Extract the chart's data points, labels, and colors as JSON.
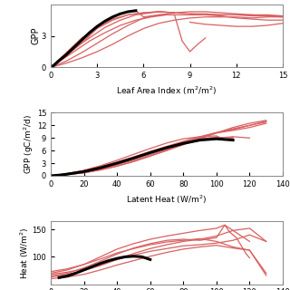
{
  "panel1": {
    "xlabel": "Leaf Area Index (m$^2$/m$^2$)",
    "ylabel": "GPP",
    "xlim": [
      0,
      15
    ],
    "ylim": [
      0,
      6
    ],
    "xticks": [
      0,
      3,
      6,
      9,
      12,
      15
    ],
    "yticks": [
      0,
      3
    ],
    "red_lines": [
      [
        [
          0,
          0.3,
          0.8,
          1.5,
          2.5,
          3.5,
          4.5,
          5.5,
          6.5,
          7,
          7.5,
          8,
          8.5,
          9,
          9.5,
          10,
          11,
          12,
          13,
          14,
          15
        ],
        [
          0,
          0.3,
          0.8,
          1.5,
          2.5,
          3.3,
          4.0,
          4.5,
          4.8,
          4.9,
          5.0,
          5.0,
          5.0,
          5.0,
          5.0,
          5.0,
          5.0,
          5.0,
          4.9,
          4.9,
          4.8
        ]
      ],
      [
        [
          0,
          0.3,
          0.8,
          1.5,
          2.5,
          3.5,
          4.5,
          5.5,
          6.5,
          7,
          8,
          9,
          10,
          11,
          12,
          13,
          14,
          15
        ],
        [
          0,
          0.4,
          1.0,
          1.8,
          2.8,
          3.8,
          4.5,
          5.0,
          5.2,
          5.3,
          5.2,
          5.1,
          5.1,
          5.0,
          5.0,
          5.0,
          4.9,
          4.9
        ]
      ],
      [
        [
          0,
          0.5,
          1,
          1.5,
          2,
          2.5,
          3,
          4,
          5,
          6,
          7,
          8
        ],
        [
          0,
          0.5,
          1.1,
          1.7,
          2.3,
          3.0,
          3.7,
          4.5,
          5.0,
          5.2,
          5.3,
          5.2
        ]
      ],
      [
        [
          0,
          0.5,
          1,
          1.5,
          2,
          3,
          4,
          5,
          6,
          7,
          8
        ],
        [
          0,
          0.7,
          1.4,
          2.1,
          2.8,
          3.8,
          4.6,
          5.0,
          5.2,
          5.3,
          5.2
        ]
      ],
      [
        [
          0,
          0.5,
          1,
          2,
          3,
          4,
          5,
          5.5,
          6,
          7,
          8,
          8.5,
          9,
          9.5,
          10
        ],
        [
          0,
          0.6,
          1.3,
          2.5,
          3.8,
          4.8,
          5.3,
          5.4,
          4.8,
          5.0,
          5.0,
          2.5,
          1.5,
          2.2,
          2.8
        ]
      ],
      [
        [
          0,
          1,
          2,
          3,
          4,
          5,
          6,
          7,
          8,
          9,
          10,
          11,
          12,
          13,
          14,
          15
        ],
        [
          0,
          0.6,
          1.4,
          2.3,
          3.2,
          4.0,
          4.7,
          5.0,
          5.2,
          5.3,
          5.3,
          5.2,
          5.1,
          5.0,
          5.0,
          4.9
        ]
      ],
      [
        [
          0,
          1,
          2,
          3,
          4,
          5,
          6,
          7,
          8,
          9,
          10,
          11,
          12,
          13,
          14,
          15
        ],
        [
          0,
          0.4,
          0.9,
          1.5,
          2.2,
          3.0,
          3.7,
          4.2,
          4.5,
          4.7,
          4.8,
          4.8,
          4.8,
          4.7,
          4.8,
          4.8
        ]
      ],
      [
        [
          9,
          10,
          11,
          12,
          13,
          14,
          15
        ],
        [
          5.1,
          5.0,
          4.9,
          4.7,
          4.6,
          4.5,
          4.5
        ]
      ],
      [
        [
          9,
          10,
          11,
          12,
          13,
          14,
          15
        ],
        [
          4.3,
          4.1,
          4.0,
          3.9,
          3.9,
          4.0,
          4.2
        ]
      ]
    ],
    "black_line": [
      [
        0,
        0.2,
        0.5,
        1.0,
        1.5,
        2.0,
        2.5,
        3.0,
        3.5,
        4.0,
        4.5,
        5.0,
        5.5
      ],
      [
        0,
        0.2,
        0.6,
        1.2,
        1.9,
        2.6,
        3.3,
        3.9,
        4.4,
        4.8,
        5.1,
        5.3,
        5.4
      ]
    ]
  },
  "panel2": {
    "xlabel": "Latent Heat (W/m$^2$)",
    "ylabel": "GPP (gC/m$^2$/d)",
    "xlim": [
      0,
      140
    ],
    "ylim": [
      0,
      15
    ],
    "xticks": [
      0,
      20,
      40,
      60,
      80,
      100,
      120,
      140
    ],
    "yticks": [
      0,
      3,
      6,
      9,
      12,
      15
    ],
    "red_lines": [
      [
        [
          0,
          5,
          10,
          20,
          30,
          40,
          50,
          60,
          70,
          80,
          90,
          100,
          110,
          120,
          130
        ],
        [
          0,
          0.2,
          0.5,
          1.2,
          2.2,
          3.3,
          4.5,
          5.8,
          7.0,
          8.2,
          9.3,
          10.3,
          11.0,
          12.0,
          13.0
        ]
      ],
      [
        [
          0,
          5,
          10,
          20,
          30,
          40,
          50,
          60,
          70,
          80,
          90,
          100,
          110,
          120,
          130
        ],
        [
          0,
          0.2,
          0.5,
          1.1,
          2.0,
          3.1,
          4.3,
          5.6,
          6.9,
          8.1,
          9.2,
          10.2,
          10.8,
          11.5,
          12.5
        ]
      ],
      [
        [
          0,
          5,
          10,
          20,
          30,
          40,
          50,
          60,
          70,
          80,
          90,
          100,
          110,
          120
        ],
        [
          0,
          0.1,
          0.3,
          0.8,
          1.6,
          2.6,
          3.7,
          5.0,
          6.3,
          7.5,
          8.5,
          9.0,
          9.3,
          9.0
        ]
      ],
      [
        [
          0,
          5,
          10,
          20,
          30,
          40,
          50,
          60,
          70,
          80,
          90,
          100,
          105,
          110
        ],
        [
          0,
          0.2,
          0.5,
          1.3,
          2.4,
          3.7,
          5.1,
          6.5,
          7.8,
          8.8,
          9.3,
          9.5,
          8.5,
          9.2
        ]
      ],
      [
        [
          0,
          5,
          10,
          20,
          30,
          40,
          50,
          60,
          70,
          80,
          90,
          100,
          110,
          120,
          130
        ],
        [
          0,
          0.1,
          0.3,
          0.7,
          1.4,
          2.3,
          3.4,
          4.7,
          6.0,
          7.4,
          8.8,
          10.2,
          11.5,
          12.5,
          13.2
        ]
      ],
      [
        [
          0,
          5,
          10,
          20,
          30,
          40,
          50,
          60,
          70,
          80,
          90,
          100,
          110,
          120,
          130
        ],
        [
          0,
          0.1,
          0.3,
          0.7,
          1.4,
          2.3,
          3.4,
          4.7,
          6.1,
          7.5,
          9.0,
          10.2,
          11.2,
          12.0,
          12.8
        ]
      ],
      [
        [
          0,
          5,
          10,
          20,
          30,
          40,
          50,
          60,
          70,
          80,
          90,
          100,
          110
        ],
        [
          0,
          0.2,
          0.4,
          1.0,
          1.9,
          3.0,
          4.2,
          5.5,
          6.8,
          7.9,
          8.8,
          9.2,
          9.0
        ]
      ]
    ],
    "black_line": [
      [
        0,
        5,
        10,
        20,
        30,
        40,
        50,
        60,
        70,
        80,
        90,
        100,
        110
      ],
      [
        0,
        0.15,
        0.4,
        1.0,
        1.9,
        3.0,
        4.2,
        5.5,
        6.7,
        7.7,
        8.5,
        8.8,
        8.5
      ]
    ]
  },
  "panel3": {
    "ylabel": "Heat (W/m$^2$)",
    "xlim": [
      0,
      140
    ],
    "ylim": [
      50,
      165
    ],
    "yticks": [
      100,
      150
    ],
    "red_lines": [
      [
        [
          0,
          10,
          20,
          30,
          40,
          50,
          60,
          70,
          80,
          90,
          100,
          110,
          120,
          130
        ],
        [
          68,
          72,
          78,
          86,
          95,
          103,
          110,
          115,
          120,
          122,
          125,
          130,
          140,
          128
        ]
      ],
      [
        [
          0,
          10,
          20,
          30,
          40,
          50,
          60,
          70,
          80,
          90,
          100,
          110,
          120,
          130
        ],
        [
          63,
          68,
          75,
          84,
          95,
          106,
          115,
          122,
          128,
          132,
          138,
          148,
          152,
          128
        ]
      ],
      [
        [
          0,
          10,
          20,
          30,
          40,
          50,
          60,
          70,
          80,
          90,
          100,
          105,
          108,
          112,
          118,
          120
        ],
        [
          65,
          70,
          80,
          92,
          105,
          116,
          124,
          130,
          132,
          130,
          135,
          158,
          145,
          135,
          105,
          98
        ]
      ],
      [
        [
          0,
          10,
          20,
          30,
          40,
          50,
          60,
          70,
          80,
          90,
          100,
          105,
          108,
          110,
          120
        ],
        [
          70,
          76,
          86,
          100,
          114,
          124,
          132,
          138,
          143,
          148,
          152,
          158,
          152,
          148,
          128
        ]
      ],
      [
        [
          0,
          10,
          20,
          30,
          40,
          50,
          60,
          70,
          80,
          90,
          100,
          110,
          120,
          130
        ],
        [
          60,
          63,
          68,
          76,
          85,
          93,
          101,
          108,
          114,
          118,
          121,
          116,
          112,
          66
        ]
      ],
      [
        [
          0,
          10,
          20,
          30,
          40,
          50,
          60,
          70,
          80,
          90,
          100,
          110,
          120,
          130
        ],
        [
          73,
          78,
          86,
          96,
          107,
          115,
          122,
          127,
          130,
          133,
          128,
          118,
          112,
          70
        ]
      ]
    ],
    "black_line": [
      [
        5,
        10,
        15,
        20,
        25,
        30,
        35,
        40,
        45,
        50,
        55,
        60
      ],
      [
        62,
        65,
        70,
        76,
        82,
        88,
        93,
        97,
        100,
        101,
        100,
        95
      ]
    ]
  },
  "red_color": "#d96060",
  "black_color": "#000000",
  "bg_color": "#ffffff",
  "red_lw": 0.9,
  "black_lw": 2.2
}
